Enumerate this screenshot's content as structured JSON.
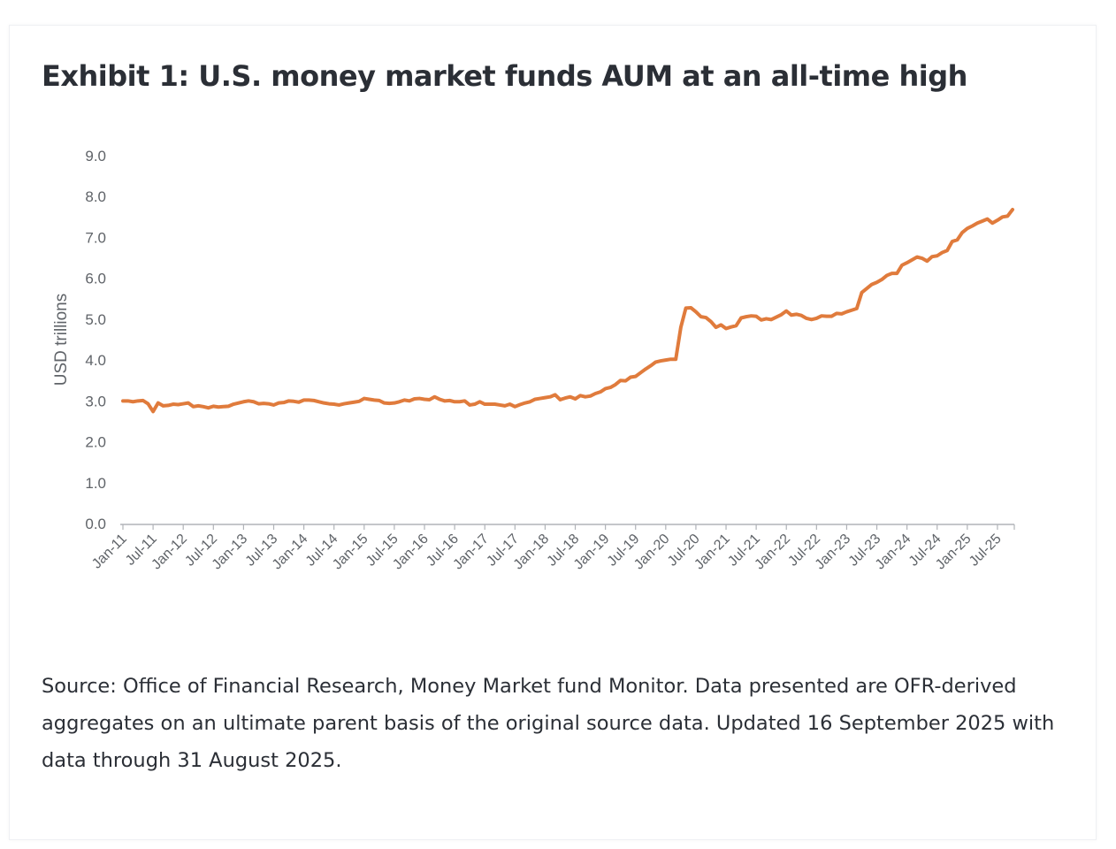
{
  "title": "Exhibit 1: U.S. money market funds AUM at an all-time high",
  "source_note": "Source: Office of Financial Research, Money Market fund Monitor. Data presented are OFR-derived aggregates on an ultimate parent basis of the original source data. Updated 16 September 2025 with data through 31 August 2025.",
  "colors": {
    "line": "#e07b3c",
    "axis": "#b0b3b8",
    "tick_text": "#5f6368",
    "title": "#2b2f36"
  },
  "chart_data": {
    "type": "line",
    "title": "Exhibit 1: U.S. money market funds AUM at an all-time high",
    "xlabel": "",
    "ylabel": "USD trillions",
    "ylim": [
      0,
      9
    ],
    "yticks": [
      "0.0",
      "1.0",
      "2.0",
      "3.0",
      "4.0",
      "5.0",
      "6.0",
      "7.0",
      "8.0",
      "9.0"
    ],
    "x_tick_labels": [
      "Jan-11",
      "Jul-11",
      "Jan-12",
      "Jul-12",
      "Jan-13",
      "Jul-13",
      "Jan-14",
      "Jul-14",
      "Jan-15",
      "Jul-15",
      "Jan-16",
      "Jul-16",
      "Jan-17",
      "Jul-17",
      "Jan-18",
      "Jul-18",
      "Jan-19",
      "Jul-19",
      "Jan-20",
      "Jul-20",
      "Jan-21",
      "Jul-21",
      "Jan-22",
      "Jul-22",
      "Jan-23",
      "Jul-23",
      "Jan-24",
      "Jul-24",
      "Jan-25",
      "Jul-25"
    ],
    "grid": false,
    "legend": "none",
    "series": [
      {
        "name": "U.S. money market funds AUM",
        "start": "Jan-11",
        "frequency": "monthly",
        "values": [
          3.0,
          3.0,
          2.98,
          3.0,
          3.01,
          2.93,
          2.74,
          2.95,
          2.88,
          2.89,
          2.92,
          2.91,
          2.93,
          2.95,
          2.86,
          2.88,
          2.86,
          2.83,
          2.87,
          2.85,
          2.86,
          2.87,
          2.92,
          2.95,
          2.98,
          3.0,
          2.98,
          2.93,
          2.94,
          2.93,
          2.9,
          2.95,
          2.96,
          3.0,
          2.99,
          2.97,
          3.02,
          3.02,
          3.01,
          2.98,
          2.95,
          2.93,
          2.92,
          2.9,
          2.93,
          2.95,
          2.97,
          2.99,
          3.06,
          3.04,
          3.02,
          3.01,
          2.95,
          2.94,
          2.95,
          2.98,
          3.02,
          3.0,
          3.05,
          3.06,
          3.04,
          3.03,
          3.1,
          3.04,
          3.0,
          3.01,
          2.98,
          2.98,
          3.0,
          2.9,
          2.92,
          2.98,
          2.92,
          2.92,
          2.92,
          2.9,
          2.88,
          2.92,
          2.86,
          2.91,
          2.95,
          2.98,
          3.04,
          3.06,
          3.08,
          3.1,
          3.15,
          3.03,
          3.07,
          3.1,
          3.05,
          3.13,
          3.1,
          3.12,
          3.18,
          3.22,
          3.3,
          3.33,
          3.4,
          3.5,
          3.49,
          3.58,
          3.6,
          3.69,
          3.78,
          3.86,
          3.95,
          3.98,
          4.0,
          4.02,
          4.02,
          4.8,
          5.27,
          5.28,
          5.18,
          5.06,
          5.04,
          4.94,
          4.8,
          4.86,
          4.77,
          4.81,
          4.84,
          5.03,
          5.06,
          5.08,
          5.07,
          4.98,
          5.01,
          4.99,
          5.05,
          5.11,
          5.2,
          5.1,
          5.12,
          5.09,
          5.02,
          4.99,
          5.02,
          5.08,
          5.07,
          5.07,
          5.14,
          5.13,
          5.18,
          5.22,
          5.26,
          5.65,
          5.75,
          5.85,
          5.9,
          5.97,
          6.07,
          6.12,
          6.12,
          6.32,
          6.38,
          6.45,
          6.52,
          6.49,
          6.42,
          6.53,
          6.55,
          6.63,
          6.68,
          6.9,
          6.94,
          7.12,
          7.22,
          7.28,
          7.35,
          7.4,
          7.45,
          7.35,
          7.42,
          7.5,
          7.52,
          7.68
        ]
      }
    ]
  }
}
